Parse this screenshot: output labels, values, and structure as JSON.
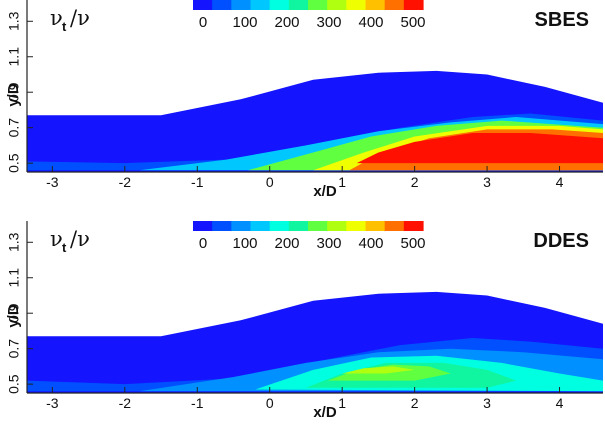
{
  "chart_data": [
    {
      "type": "heatmap",
      "title": "SBES",
      "quantity": {
        "base": "ν",
        "sub": "t",
        "rest": "/ν"
      },
      "xlabel": "x/D",
      "ylabel": "y/D",
      "xlim": [
        -3.35,
        4.6
      ],
      "ylim": [
        0.45,
        1.42
      ],
      "xticks": [
        -3,
        -2,
        -1,
        0,
        1,
        2,
        3,
        4
      ],
      "xtick_labels": [
        "-3",
        "-2",
        "-1",
        "0",
        "1",
        "2",
        "3",
        "4"
      ],
      "yticks": [
        0.5,
        0.7,
        0.9,
        1.1,
        1.3
      ],
      "ytick_labels": [
        "0.5",
        "0.7",
        "0.9",
        "1.1",
        "1.3"
      ],
      "colorbar": {
        "range": [
          0,
          500
        ],
        "ticks": [
          0,
          100,
          200,
          300,
          400,
          500
        ],
        "tick_labels": [
          "0",
          "100",
          "200",
          "300",
          "400",
          "500"
        ],
        "colors": [
          "#1414ff",
          "#0050ff",
          "#0090ff",
          "#00c8ff",
          "#00ffe0",
          "#10f5a0",
          "#60ff40",
          "#b0ff10",
          "#f0ff00",
          "#ffc000",
          "#ff7000",
          "#ff1000"
        ]
      },
      "shear_layer_upper_boundary": [
        [
          -3.35,
          0.77
        ],
        [
          -1.5,
          0.77
        ],
        [
          -0.4,
          0.86
        ],
        [
          0.6,
          0.97
        ],
        [
          1.5,
          1.01
        ],
        [
          2.3,
          1.02
        ],
        [
          3.0,
          1.0
        ],
        [
          3.8,
          0.93
        ],
        [
          4.6,
          0.84
        ]
      ],
      "viscosity_ratio_field": [
        {
          "level": 70,
          "outline": [
            [
              -3.35,
              0.51
            ],
            [
              -2.0,
              0.5
            ],
            [
              -0.6,
              0.52
            ],
            [
              0.8,
              0.62
            ],
            [
              1.8,
              0.7
            ],
            [
              2.8,
              0.76
            ],
            [
              3.6,
              0.78
            ],
            [
              4.6,
              0.74
            ],
            [
              4.6,
              0.46
            ],
            [
              -3.35,
              0.46
            ]
          ]
        },
        {
          "level": 150,
          "outline": [
            [
              -1.8,
              0.46
            ],
            [
              -0.6,
              0.52
            ],
            [
              0.5,
              0.6
            ],
            [
              1.5,
              0.68
            ],
            [
              2.5,
              0.73
            ],
            [
              3.4,
              0.76
            ],
            [
              4.6,
              0.72
            ],
            [
              4.6,
              0.46
            ]
          ]
        },
        {
          "level": 250,
          "outline": [
            [
              -0.3,
              0.46
            ],
            [
              0.6,
              0.56
            ],
            [
              1.4,
              0.65
            ],
            [
              2.3,
              0.71
            ],
            [
              3.2,
              0.74
            ],
            [
              4.6,
              0.7
            ],
            [
              4.6,
              0.46
            ]
          ]
        },
        {
          "level": 350,
          "outline": [
            [
              0.6,
              0.46
            ],
            [
              1.3,
              0.56
            ],
            [
              2.0,
              0.65
            ],
            [
              3.0,
              0.71
            ],
            [
              4.0,
              0.71
            ],
            [
              4.6,
              0.69
            ],
            [
              4.6,
              0.46
            ]
          ]
        },
        {
          "level": 450,
          "outline": [
            [
              1.1,
              0.46
            ],
            [
              1.5,
              0.55
            ],
            [
              2.2,
              0.64
            ],
            [
              3.0,
              0.69
            ],
            [
              3.9,
              0.69
            ],
            [
              4.6,
              0.67
            ],
            [
              4.6,
              0.46
            ]
          ]
        },
        {
          "level": 500,
          "outline": [
            [
              1.2,
              0.5
            ],
            [
              1.5,
              0.56
            ],
            [
              2.0,
              0.62
            ],
            [
              2.8,
              0.67
            ],
            [
              3.6,
              0.67
            ],
            [
              4.6,
              0.64
            ],
            [
              4.6,
              0.5
            ]
          ]
        }
      ]
    },
    {
      "type": "heatmap",
      "title": "DDES",
      "quantity": {
        "base": "ν",
        "sub": "t",
        "rest": "/ν"
      },
      "xlabel": "x/D",
      "ylabel": "y/D",
      "xlim": [
        -3.35,
        4.6
      ],
      "ylim": [
        0.45,
        1.42
      ],
      "xticks": [
        -3,
        -2,
        -1,
        0,
        1,
        2,
        3,
        4
      ],
      "xtick_labels": [
        "-3",
        "-2",
        "-1",
        "0",
        "1",
        "2",
        "3",
        "4"
      ],
      "yticks": [
        0.5,
        0.7,
        0.9,
        1.1,
        1.3
      ],
      "ytick_labels": [
        "0.5",
        "0.7",
        "0.9",
        "1.1",
        "1.3"
      ],
      "colorbar": {
        "range": [
          0,
          500
        ],
        "ticks": [
          0,
          100,
          200,
          300,
          400,
          500
        ],
        "tick_labels": [
          "0",
          "100",
          "200",
          "300",
          "400",
          "500"
        ],
        "colors": [
          "#1414ff",
          "#0050ff",
          "#0090ff",
          "#00c8ff",
          "#00ffe0",
          "#10f5a0",
          "#60ff40",
          "#b0ff10",
          "#f0ff00",
          "#ffc000",
          "#ff7000",
          "#ff1000"
        ]
      },
      "shear_layer_upper_boundary": [
        [
          -3.35,
          0.77
        ],
        [
          -1.5,
          0.77
        ],
        [
          -0.4,
          0.86
        ],
        [
          0.6,
          0.97
        ],
        [
          1.5,
          1.01
        ],
        [
          2.3,
          1.02
        ],
        [
          3.0,
          1.0
        ],
        [
          3.8,
          0.93
        ],
        [
          4.6,
          0.84
        ]
      ],
      "viscosity_ratio_field": [
        {
          "level": 60,
          "outline": [
            [
              -3.35,
              0.52
            ],
            [
              -2.0,
              0.5
            ],
            [
              -0.6,
              0.53
            ],
            [
              0.8,
              0.64
            ],
            [
              1.8,
              0.72
            ],
            [
              2.8,
              0.76
            ],
            [
              3.6,
              0.74
            ],
            [
              4.6,
              0.7
            ],
            [
              4.6,
              0.46
            ],
            [
              -3.35,
              0.46
            ]
          ]
        },
        {
          "level": 120,
          "outline": [
            [
              -1.8,
              0.46
            ],
            [
              -0.5,
              0.54
            ],
            [
              0.5,
              0.62
            ],
            [
              1.5,
              0.68
            ],
            [
              2.5,
              0.7
            ],
            [
              3.5,
              0.68
            ],
            [
              4.6,
              0.64
            ],
            [
              4.6,
              0.46
            ]
          ]
        },
        {
          "level": 180,
          "outline": [
            [
              -0.2,
              0.47
            ],
            [
              0.6,
              0.58
            ],
            [
              1.4,
              0.65
            ],
            [
              2.3,
              0.66
            ],
            [
              3.2,
              0.62
            ],
            [
              4.0,
              0.56
            ],
            [
              4.6,
              0.52
            ],
            [
              4.6,
              0.46
            ]
          ]
        },
        {
          "level": 230,
          "outline": [
            [
              0.5,
              0.48
            ],
            [
              1.0,
              0.56
            ],
            [
              1.6,
              0.62
            ],
            [
              2.4,
              0.62
            ],
            [
              3.0,
              0.58
            ],
            [
              3.4,
              0.52
            ],
            [
              3.0,
              0.48
            ]
          ]
        },
        {
          "level": 280,
          "outline": [
            [
              0.8,
              0.52
            ],
            [
              1.2,
              0.58
            ],
            [
              1.7,
              0.61
            ],
            [
              2.2,
              0.6
            ],
            [
              2.5,
              0.56
            ],
            [
              2.0,
              0.52
            ]
          ]
        },
        {
          "level": 320,
          "outline": [
            [
              1.0,
              0.56
            ],
            [
              1.3,
              0.59
            ],
            [
              1.7,
              0.6
            ],
            [
              2.0,
              0.58
            ],
            [
              1.6,
              0.56
            ]
          ]
        }
      ]
    }
  ]
}
